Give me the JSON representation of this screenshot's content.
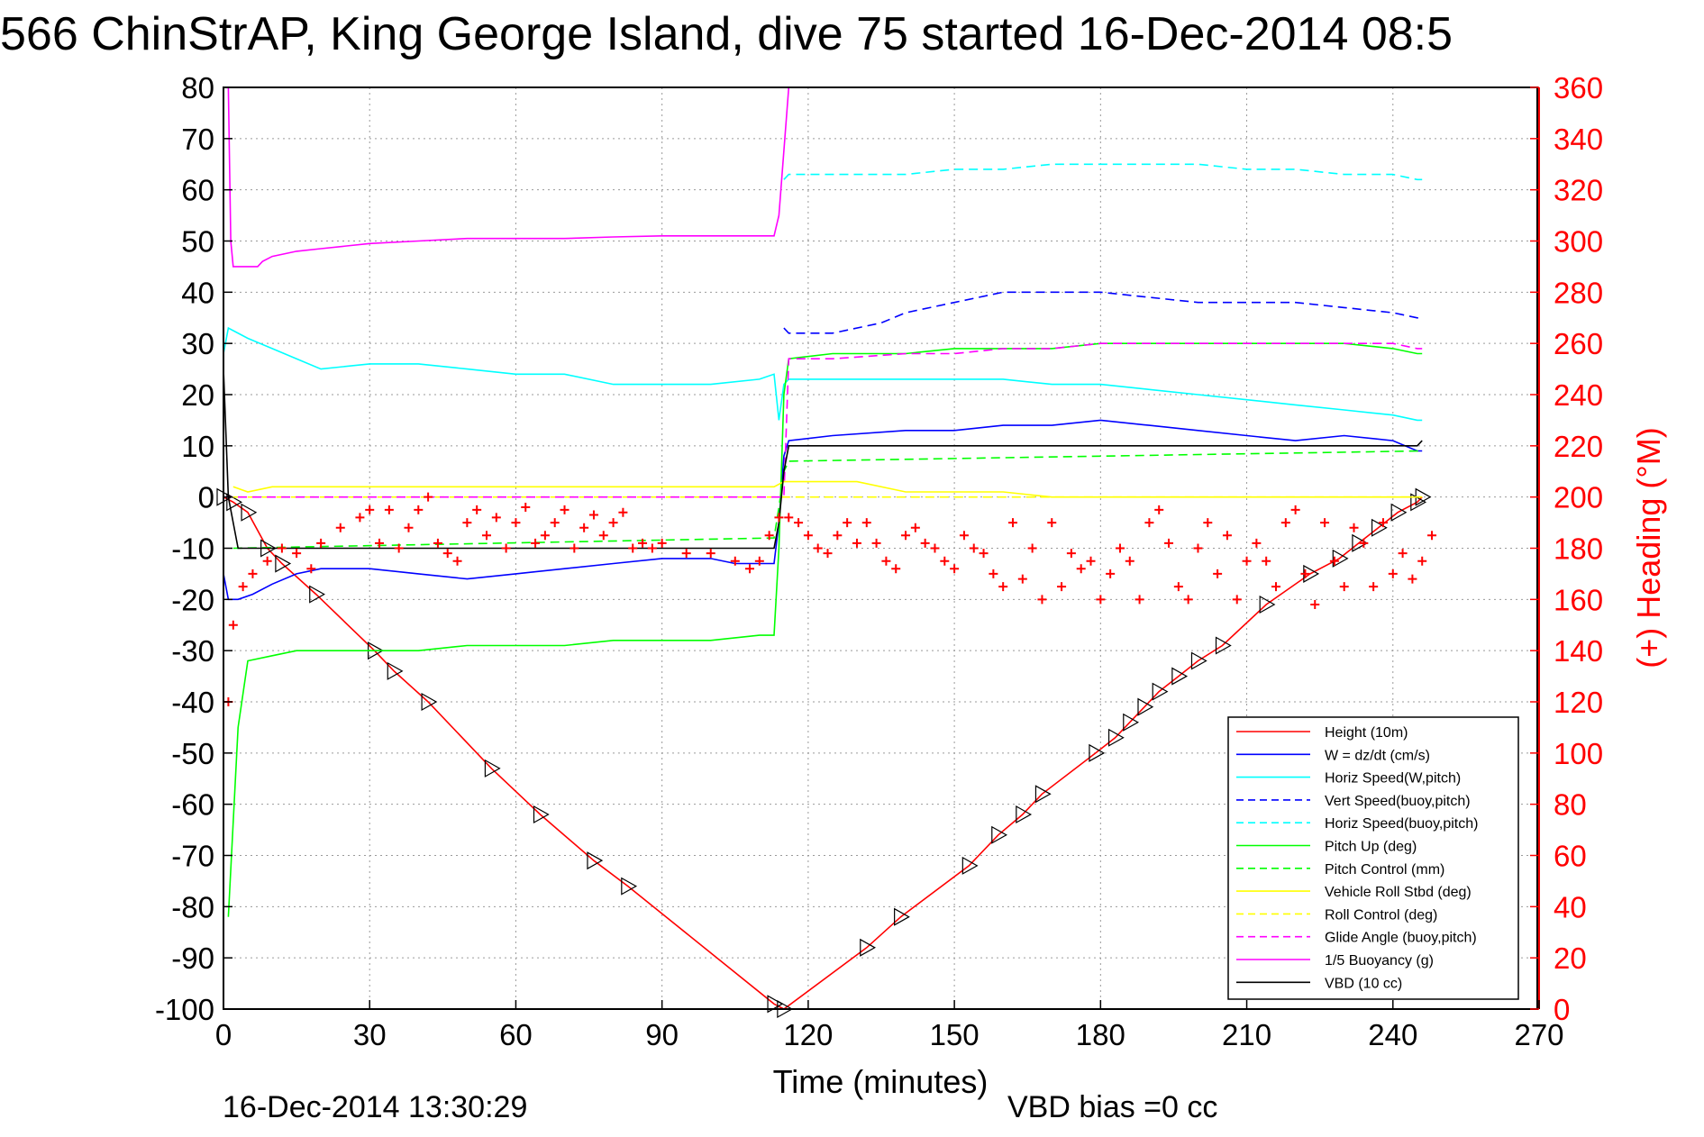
{
  "chart_data": {
    "type": "line",
    "title": "566 ChinStrAP, King George Island, dive 75 started 16-Dec-2014 08:5",
    "xlabel": "Time (minutes)",
    "ylabel_right": "(+) Heading (°M)",
    "footer_timestamp": "16-Dec-2014 13:30:29",
    "footer_note": "VBD bias =0 cc",
    "xlim": [
      0,
      270
    ],
    "ylim": [
      -100,
      80
    ],
    "ylim_right": [
      0,
      360
    ],
    "x_ticks": [
      "0",
      "30",
      "60",
      "90",
      "120",
      "150",
      "180",
      "210",
      "240",
      "270"
    ],
    "y_ticks": [
      "80",
      "70",
      "60",
      "50",
      "40",
      "30",
      "20",
      "10",
      "0",
      "-10",
      "-20",
      "-30",
      "-40",
      "-50",
      "-60",
      "-70",
      "-80",
      "-90",
      "-100"
    ],
    "y_right_ticks": [
      "360",
      "340",
      "320",
      "300",
      "280",
      "260",
      "240",
      "220",
      "200",
      "180",
      "160",
      "140",
      "120",
      "100",
      "80",
      "60",
      "40",
      "20",
      "0"
    ],
    "grid": true,
    "legend_position": "bottom-right",
    "legend": [
      {
        "label": "Height (10m)",
        "color": "#ff0000",
        "dash": "solid"
      },
      {
        "label": "W = dz/dt (cm/s)",
        "color": "#0000ff",
        "dash": "solid"
      },
      {
        "label": "Horiz Speed(W,pitch)",
        "color": "#00ffff",
        "dash": "solid"
      },
      {
        "label": "Vert Speed(buoy,pitch)",
        "color": "#0000ff",
        "dash": "dashed"
      },
      {
        "label": "Horiz Speed(buoy,pitch)",
        "color": "#00ffff",
        "dash": "dashed"
      },
      {
        "label": "Pitch Up (deg)",
        "color": "#00ff00",
        "dash": "solid"
      },
      {
        "label": "Pitch Control (mm)",
        "color": "#00ff00",
        "dash": "dashed"
      },
      {
        "label": "Vehicle Roll Stbd (deg)",
        "color": "#ffff00",
        "dash": "solid"
      },
      {
        "label": "Roll Control (deg)",
        "color": "#ffff00",
        "dash": "dashed"
      },
      {
        "label": "Glide Angle (buoy,pitch)",
        "color": "#ff00ff",
        "dash": "dashed"
      },
      {
        "label": "1/5 Buoyancy (g)",
        "color": "#ff00ff",
        "dash": "solid"
      },
      {
        "label": "VBD (10 cc)",
        "color": "#000000",
        "dash": "solid"
      }
    ],
    "series": [
      {
        "name": "Height (10m)",
        "color": "#ff0000",
        "dash": "solid",
        "markers": "triangle",
        "x": [
          0,
          2,
          5,
          9,
          12,
          19,
          31,
          35,
          42,
          55,
          65,
          76,
          83,
          113,
          115,
          132,
          139,
          153,
          159,
          164,
          168,
          179,
          183,
          186,
          189,
          192,
          196,
          200,
          205,
          214,
          223,
          229,
          233,
          237,
          241,
          245,
          246
        ],
        "y": [
          0,
          -1,
          -3,
          -10,
          -13,
          -19,
          -30,
          -34,
          -40,
          -53,
          -62,
          -71,
          -76,
          -99,
          -100,
          -88,
          -82,
          -72,
          -66,
          -62,
          -58,
          -50,
          -47,
          -44,
          -41,
          -38,
          -35,
          -32,
          -29,
          -21,
          -15,
          -12,
          -9,
          -6,
          -3,
          -1,
          0
        ]
      },
      {
        "name": "W = dz/dt (cm/s)",
        "color": "#0000ff",
        "dash": "solid",
        "x": [
          0,
          1,
          3,
          6,
          10,
          15,
          20,
          30,
          40,
          50,
          60,
          70,
          80,
          90,
          100,
          105,
          110,
          113,
          114,
          115,
          116,
          125,
          140,
          150,
          160,
          170,
          180,
          190,
          200,
          210,
          220,
          230,
          240,
          245,
          246
        ],
        "y": [
          -15,
          -20,
          -20,
          -19,
          -17,
          -15,
          -14,
          -14,
          -15,
          -16,
          -15,
          -14,
          -13,
          -12,
          -12,
          -13,
          -13,
          -13,
          -5,
          8,
          11,
          12,
          13,
          13,
          14,
          14,
          15,
          14,
          13,
          12,
          11,
          12,
          11,
          9,
          9
        ]
      },
      {
        "name": "Horiz Speed(W,pitch)",
        "color": "#00ffff",
        "dash": "solid",
        "x": [
          0,
          1,
          5,
          10,
          15,
          20,
          30,
          40,
          50,
          60,
          70,
          80,
          90,
          100,
          110,
          113,
          114,
          115,
          116,
          125,
          140,
          150,
          160,
          170,
          180,
          190,
          200,
          210,
          220,
          230,
          240,
          245,
          246
        ],
        "y": [
          28,
          33,
          31,
          29,
          27,
          25,
          26,
          26,
          25,
          24,
          24,
          22,
          22,
          22,
          23,
          24,
          15,
          22,
          23,
          23,
          23,
          23,
          23,
          22,
          22,
          21,
          20,
          19,
          18,
          17,
          16,
          15,
          15
        ]
      },
      {
        "name": "Vert Speed(buoy,pitch)",
        "color": "#0000ff",
        "dash": "dashed",
        "x": [
          115,
          116,
          125,
          135,
          140,
          150,
          160,
          170,
          180,
          190,
          200,
          210,
          220,
          230,
          240,
          245,
          246
        ],
        "y": [
          33,
          32,
          32,
          34,
          36,
          38,
          40,
          40,
          40,
          39,
          38,
          38,
          38,
          37,
          36,
          35,
          35
        ]
      },
      {
        "name": "Horiz Speed(buoy,pitch)",
        "color": "#00ffff",
        "dash": "dashed",
        "x": [
          115,
          116,
          125,
          140,
          150,
          160,
          170,
          180,
          190,
          200,
          210,
          220,
          230,
          240,
          245,
          246
        ],
        "y": [
          62,
          63,
          63,
          63,
          64,
          64,
          65,
          65,
          65,
          65,
          64,
          64,
          63,
          63,
          62,
          62
        ]
      },
      {
        "name": "Pitch Up (deg)",
        "color": "#00ff00",
        "dash": "solid",
        "x": [
          1,
          3,
          5,
          10,
          15,
          20,
          30,
          40,
          50,
          60,
          70,
          80,
          90,
          100,
          110,
          113,
          114,
          115,
          116,
          125,
          140,
          150,
          160,
          170,
          180,
          190,
          200,
          210,
          220,
          230,
          240,
          245,
          246
        ],
        "y": [
          -82,
          -45,
          -32,
          -31,
          -30,
          -30,
          -30,
          -30,
          -29,
          -29,
          -29,
          -28,
          -28,
          -28,
          -27,
          -27,
          -10,
          20,
          27,
          28,
          28,
          29,
          29,
          29,
          30,
          30,
          30,
          30,
          30,
          30,
          29,
          28,
          28
        ]
      },
      {
        "name": "Pitch Control (mm)",
        "color": "#00ff00",
        "dash": "dashed",
        "x": [
          2,
          113,
          114,
          115,
          116,
          246
        ],
        "y": [
          -10,
          -8,
          -2,
          5,
          7,
          9
        ]
      },
      {
        "name": "Vehicle Roll Stbd (deg)",
        "color": "#ffff00",
        "dash": "solid",
        "x": [
          2,
          5,
          10,
          20,
          30,
          40,
          50,
          60,
          70,
          80,
          90,
          100,
          110,
          113,
          115,
          120,
          130,
          140,
          150,
          160,
          170,
          180,
          190,
          200,
          210,
          220,
          230,
          240,
          245,
          246
        ],
        "y": [
          2,
          1,
          2,
          2,
          2,
          2,
          2,
          2,
          2,
          2,
          2,
          2,
          2,
          2,
          3,
          3,
          3,
          1,
          1,
          1,
          0,
          0,
          0,
          0,
          0,
          0,
          0,
          0,
          0,
          0
        ]
      },
      {
        "name": "Roll Control (deg)",
        "color": "#ffff00",
        "dash": "dashed",
        "x": [
          2,
          5,
          10,
          30,
          60,
          90,
          113,
          115,
          130,
          160,
          190,
          220,
          245,
          246
        ],
        "y": [
          0,
          0,
          0,
          0,
          0,
          0,
          0,
          0,
          0,
          0,
          0,
          0,
          0,
          0
        ]
      },
      {
        "name": "Glide Angle (buoy,pitch)",
        "color": "#ff00ff",
        "dash": "dashed",
        "x": [
          0,
          30,
          60,
          90,
          113,
          115,
          116,
          125,
          140,
          150,
          160,
          170,
          180,
          190,
          200,
          210,
          220,
          230,
          240,
          245,
          246
        ],
        "y": [
          0,
          0,
          0,
          0,
          0,
          0,
          27,
          27,
          28,
          28,
          29,
          29,
          30,
          30,
          30,
          30,
          30,
          30,
          30,
          29,
          29
        ]
      },
      {
        "name": "1/5 Buoyancy (g)",
        "color": "#ff00ff",
        "dash": "solid",
        "x": [
          1,
          1.5,
          2,
          7,
          8,
          10,
          15,
          20,
          30,
          40,
          50,
          60,
          70,
          80,
          90,
          100,
          110,
          113,
          114,
          116
        ],
        "y": [
          80,
          50,
          45,
          45,
          46,
          47,
          48,
          48.5,
          49.5,
          50,
          50.5,
          50.5,
          50.5,
          50.8,
          51,
          51,
          51,
          51,
          55,
          80
        ]
      },
      {
        "name": "VBD (10 cc)",
        "color": "#000000",
        "dash": "solid",
        "x": [
          0,
          1,
          2,
          3,
          113,
          114,
          115,
          116,
          125,
          150,
          180,
          210,
          240,
          245,
          246
        ],
        "y": [
          25,
          0,
          -5,
          -10,
          -10,
          -5,
          5,
          10,
          10,
          10,
          10,
          10,
          10,
          10,
          11
        ]
      },
      {
        "name": "Heading",
        "color": "#ff0000",
        "dash": "none",
        "markers": "plus",
        "axis": "right",
        "x": [
          1,
          2,
          4,
          6,
          9,
          12,
          15,
          18,
          20,
          24,
          28,
          30,
          32,
          34,
          36,
          38,
          40,
          42,
          44,
          46,
          48,
          50,
          52,
          54,
          56,
          58,
          60,
          62,
          64,
          66,
          68,
          70,
          72,
          74,
          76,
          78,
          80,
          82,
          84,
          86,
          88,
          90,
          95,
          100,
          105,
          108,
          110,
          112,
          114,
          116,
          118,
          120,
          122,
          124,
          126,
          128,
          130,
          132,
          134,
          136,
          138,
          140,
          142,
          144,
          146,
          148,
          150,
          152,
          154,
          156,
          158,
          160,
          162,
          164,
          166,
          168,
          170,
          172,
          174,
          176,
          178,
          180,
          182,
          184,
          186,
          188,
          190,
          192,
          194,
          196,
          198,
          200,
          202,
          204,
          206,
          208,
          210,
          212,
          214,
          216,
          218,
          220,
          222,
          224,
          226,
          228,
          230,
          232,
          234,
          236,
          238,
          240,
          242,
          244,
          246,
          248
        ],
        "y": [
          120,
          150,
          165,
          170,
          175,
          180,
          178,
          172,
          182,
          188,
          192,
          195,
          182,
          195,
          180,
          188,
          195,
          200,
          182,
          178,
          175,
          190,
          195,
          185,
          192,
          180,
          190,
          196,
          182,
          185,
          190,
          195,
          180,
          188,
          193,
          185,
          190,
          194,
          180,
          182,
          180,
          182,
          178,
          178,
          175,
          172,
          175,
          185,
          192,
          192,
          190,
          185,
          180,
          178,
          185,
          190,
          182,
          190,
          182,
          175,
          172,
          185,
          188,
          182,
          180,
          175,
          172,
          185,
          180,
          178,
          170,
          165,
          190,
          168,
          180,
          160,
          190,
          165,
          178,
          172,
          175,
          160,
          170,
          180,
          175,
          160,
          190,
          195,
          182,
          165,
          160,
          180,
          190,
          170,
          185,
          160,
          175,
          182,
          175,
          165,
          190,
          195,
          170,
          158,
          190,
          175,
          165,
          188,
          182,
          165,
          190,
          170,
          178,
          168,
          175,
          185
        ]
      }
    ]
  }
}
